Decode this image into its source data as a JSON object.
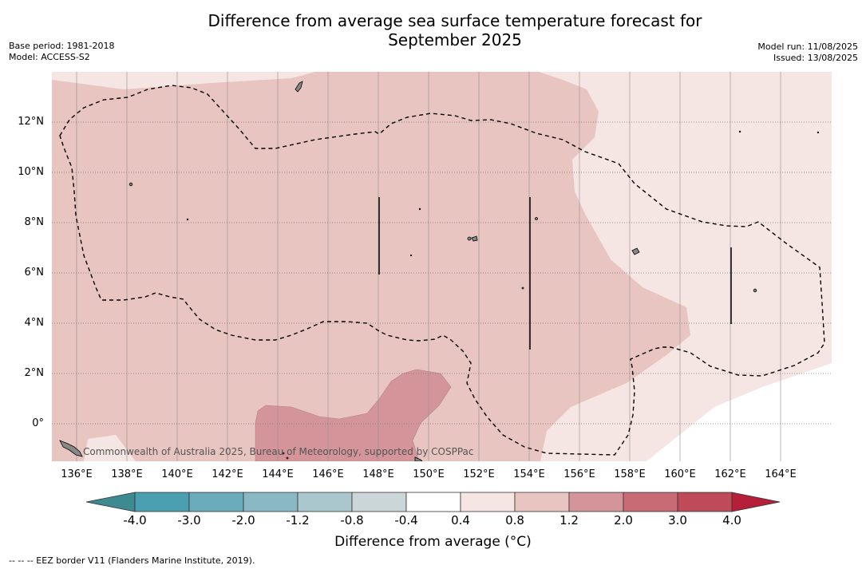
{
  "title_line1": "Difference from average sea surface temperature forecast for",
  "title_line2": "September 2025",
  "meta_left": [
    "Base period: 1981-2018",
    "Model: ACCESS-S2"
  ],
  "meta_right": [
    "Model run: 11/08/2025",
    "Issued: 13/08/2025"
  ],
  "credit": "Commonwealth of Australia 2025, Bureau of Meteorology, supported by COSPPac",
  "footnote": "--  --  -- EEZ border V11 (Flanders Marine Institute, 2019).",
  "x_ticks": [
    "136°E",
    "138°E",
    "140°E",
    "142°E",
    "144°E",
    "146°E",
    "148°E",
    "150°E",
    "152°E",
    "154°E",
    "156°E",
    "158°E",
    "160°E",
    "162°E",
    "164°E"
  ],
  "y_ticks": [
    "12°N",
    "10°N",
    "8°N",
    "6°N",
    "4°N",
    "2°N",
    "0°"
  ],
  "colorbar": {
    "title": "Difference from average (°C)",
    "labels": [
      "-4.0",
      "-3.0",
      "-2.0",
      "-1.2",
      "-0.8",
      "-0.4",
      "0.4",
      "0.8",
      "1.2",
      "2.0",
      "3.0",
      "4.0"
    ],
    "colors": [
      "#4a9fb0",
      "#6aacbb",
      "#8ab9c5",
      "#a9c7cc",
      "#cbd6d8",
      "#ffffff",
      "#f5e6e4",
      "#e8c5c1",
      "#d4959a",
      "#c96b74",
      "#bf4a58"
    ],
    "extend_low_color": "#3d8a91",
    "extend_high_color": "#b51f3a"
  },
  "map": {
    "lon_range": [
      135,
      166
    ],
    "lat_range": [
      -1.5,
      14
    ],
    "background_class_color": "#e8c5c1",
    "classes": [
      {
        "range": "0.4 to 0.8",
        "color": "#f5e6e4"
      },
      {
        "range": "0.8 to 1.2",
        "color": "#e8c5c1"
      },
      {
        "range": "1.2 to 2.0",
        "color": "#d4959a"
      },
      {
        "range": "-0.4 to 0.4",
        "color": "#ffffff"
      }
    ]
  }
}
